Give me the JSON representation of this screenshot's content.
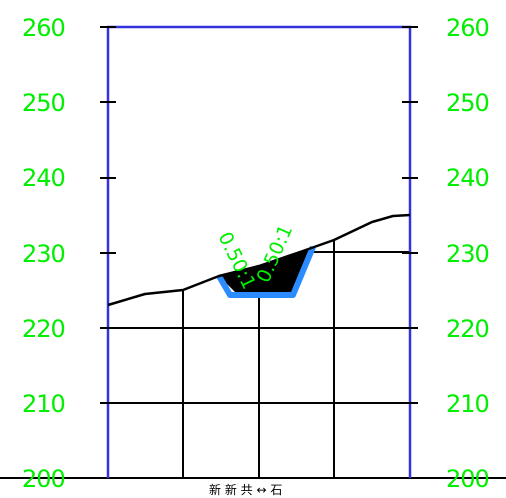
{
  "section": {
    "elevation_labels": [
      "260",
      "250",
      "240",
      "230",
      "220",
      "210",
      "200"
    ],
    "slope_labels": {
      "left": "0.50:1",
      "right": "0.50:1"
    },
    "bottom_text": "新 新 共 ↔ 石",
    "colors": {
      "label_green": "#00ee00",
      "frame_blue": "#3333dd",
      "ground_line": "#000000",
      "grid": "#000000",
      "channel_fill": "#000000",
      "lining_blue": "#2a8cff"
    }
  }
}
